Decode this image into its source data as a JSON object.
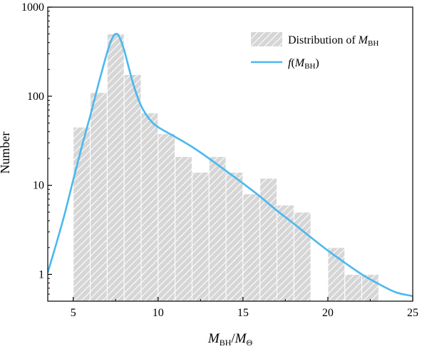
{
  "chart_data": {
    "type": "bar",
    "x_axis": {
      "label_main": "M",
      "label_main_sub": "BH",
      "label_sep": "/",
      "label_den": "M",
      "label_den_sub": "Θ",
      "range": [
        3.5,
        25
      ],
      "ticks": [
        5,
        10,
        15,
        20,
        25
      ],
      "tick_labels": [
        "5",
        "10",
        "15",
        "20",
        "25"
      ]
    },
    "y_axis": {
      "label": "Number",
      "scale": "log",
      "range": [
        0.5,
        1000
      ],
      "ticks": [
        1,
        10,
        100,
        1000
      ],
      "tick_labels": [
        "1",
        "10",
        "100",
        "1000"
      ]
    },
    "grid": false,
    "legend_position": "top-right",
    "legend": {
      "hist_text": "Distribution of ",
      "hist_math": "M",
      "hist_sub": "BH",
      "line_fn": "f",
      "line_open": "(",
      "line_math": "M",
      "line_sub": "BH",
      "line_close": ")"
    },
    "colors": {
      "bar_fill": "#d6d6d6",
      "hatch": "#ffffff",
      "line": "#4ab8f0"
    },
    "series": [
      {
        "kind": "histogram",
        "bin_width": 1,
        "bins": [
          {
            "x0": 5,
            "x1": 6,
            "value": 45
          },
          {
            "x0": 6,
            "x1": 7,
            "value": 110
          },
          {
            "x0": 7,
            "x1": 8,
            "value": 500
          },
          {
            "x0": 8,
            "x1": 9,
            "value": 175
          },
          {
            "x0": 9,
            "x1": 10,
            "value": 65
          },
          {
            "x0": 10,
            "x1": 11,
            "value": 38
          },
          {
            "x0": 11,
            "x1": 12,
            "value": 21
          },
          {
            "x0": 12,
            "x1": 13,
            "value": 14
          },
          {
            "x0": 13,
            "x1": 14,
            "value": 21
          },
          {
            "x0": 14,
            "x1": 15,
            "value": 14
          },
          {
            "x0": 15,
            "x1": 16,
            "value": 8
          },
          {
            "x0": 16,
            "x1": 17,
            "value": 12
          },
          {
            "x0": 17,
            "x1": 18,
            "value": 6
          },
          {
            "x0": 18,
            "x1": 19,
            "value": 5
          },
          {
            "x0": 20,
            "x1": 21,
            "value": 2
          },
          {
            "x0": 21,
            "x1": 22,
            "value": 1
          },
          {
            "x0": 22,
            "x1": 23,
            "value": 1
          }
        ]
      },
      {
        "kind": "line",
        "points": [
          [
            3.5,
            1.05
          ],
          [
            4.0,
            2.2
          ],
          [
            4.5,
            4.8
          ],
          [
            5.0,
            11.5
          ],
          [
            5.5,
            27
          ],
          [
            6.0,
            60
          ],
          [
            6.5,
            140
          ],
          [
            7.0,
            310
          ],
          [
            7.3,
            450
          ],
          [
            7.5,
            500
          ],
          [
            7.7,
            470
          ],
          [
            8.0,
            330
          ],
          [
            8.3,
            200
          ],
          [
            8.6,
            125
          ],
          [
            9.0,
            78
          ],
          [
            9.5,
            55
          ],
          [
            10.0,
            45
          ],
          [
            11.0,
            35
          ],
          [
            12.0,
            27
          ],
          [
            13.0,
            20
          ],
          [
            14.0,
            14.5
          ],
          [
            15.0,
            10.5
          ],
          [
            16.0,
            7.5
          ],
          [
            17.0,
            5.2
          ],
          [
            18.0,
            3.7
          ],
          [
            19.0,
            2.6
          ],
          [
            20.0,
            1.85
          ],
          [
            21.0,
            1.35
          ],
          [
            22.0,
            1.0
          ],
          [
            23.0,
            0.78
          ],
          [
            24.0,
            0.63
          ],
          [
            25.0,
            0.57
          ]
        ]
      }
    ]
  }
}
